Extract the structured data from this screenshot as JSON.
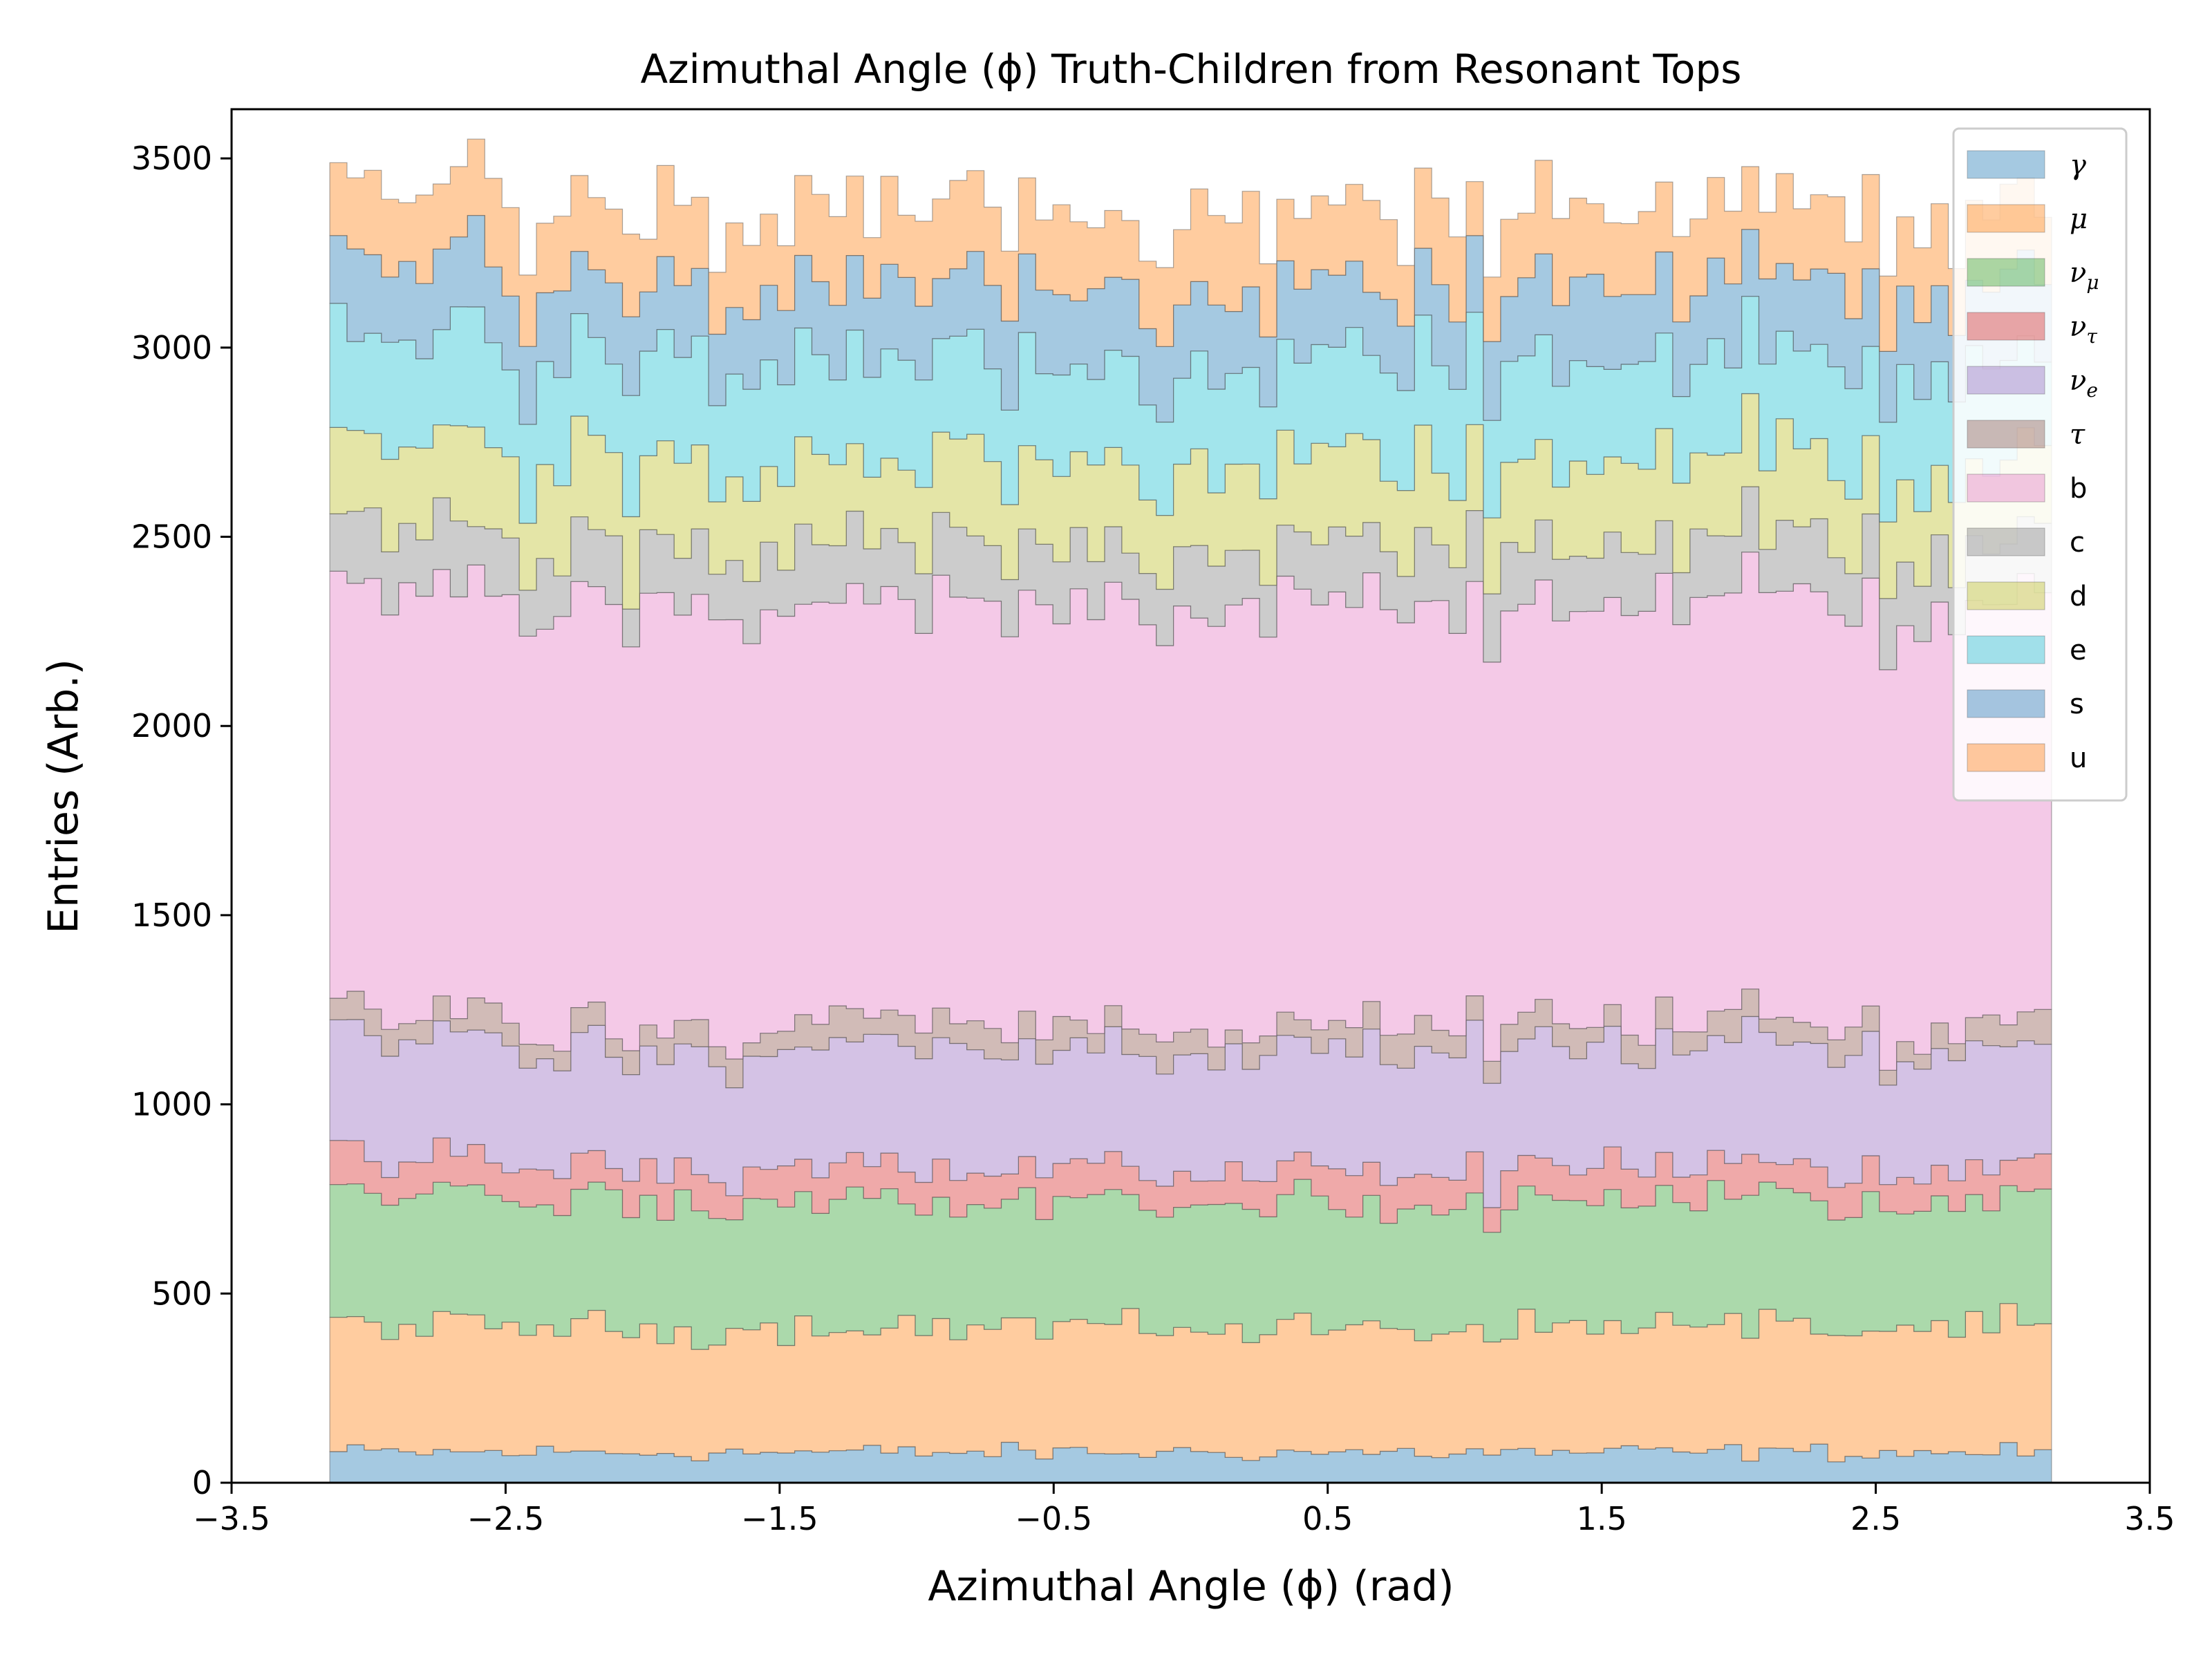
{
  "chart_data": {
    "type": "area",
    "stacked": true,
    "step": true,
    "title": "Azimuthal Angle (ϕ) Truth-Children from Resonant Tops",
    "xlabel": "Azimuthal Angle (ϕ) (rad)",
    "ylabel": "Entries (Arb.)",
    "xlim": [
      -3.5,
      3.5
    ],
    "ylim": [
      0,
      3630
    ],
    "x_ticks": [
      -3.5,
      -2.5,
      -1.5,
      -0.5,
      0.5,
      1.5,
      2.5,
      3.5
    ],
    "x_tick_labels": [
      "−3.5",
      "−2.5",
      "−1.5",
      "−0.5",
      "0.5",
      "1.5",
      "2.5",
      "3.5"
    ],
    "y_ticks": [
      0,
      500,
      1000,
      1500,
      2000,
      2500,
      3000,
      3500
    ],
    "y_tick_labels": [
      "0",
      "500",
      "1000",
      "1500",
      "2000",
      "2500",
      "3000",
      "3500"
    ],
    "grid": false,
    "legend_position": "top-right",
    "bins": {
      "min": -3.1416,
      "max": 3.1416,
      "count": 100
    },
    "series": [
      {
        "name": "γ",
        "color": "#1f77b4",
        "mean": 80,
        "noise": 12
      },
      {
        "name": "μ",
        "color": "#ff7f0e",
        "mean": 330,
        "noise": 20
      },
      {
        "name": "νμ",
        "color": "#2ca02c",
        "mean": 335,
        "noise": 20
      },
      {
        "name": "ντ",
        "color": "#d62728",
        "mean": 88,
        "noise": 14
      },
      {
        "name": "νe",
        "color": "#9467bd",
        "mean": 315,
        "noise": 20
      },
      {
        "name": "τ",
        "color": "#8c564b",
        "mean": 65,
        "noise": 14
      },
      {
        "name": "b",
        "color": "#e377c2",
        "mean": 1110,
        "noise": 30
      },
      {
        "name": "c",
        "color": "#7f7f7f",
        "mean": 155,
        "noise": 22
      },
      {
        "name": "d",
        "color": "#bcbd22",
        "mean": 215,
        "noise": 25
      },
      {
        "name": "e",
        "color": "#17becf",
        "mean": 265,
        "noise": 25
      },
      {
        "name": "s",
        "color": "#1f77b4",
        "mean": 200,
        "noise": 22
      },
      {
        "name": "u",
        "color": "#ff7f0e",
        "mean": 200,
        "noise": 24
      }
    ],
    "legend": [
      {
        "label": "γ",
        "sub": "",
        "math": true
      },
      {
        "label": "μ",
        "sub": "",
        "math": true
      },
      {
        "label": "ν",
        "sub": "μ",
        "math": true
      },
      {
        "label": "ν",
        "sub": "τ",
        "math": true
      },
      {
        "label": "ν",
        "sub": "e",
        "math": true
      },
      {
        "label": "τ",
        "sub": "",
        "math": true
      },
      {
        "label": "b",
        "sub": "",
        "math": false
      },
      {
        "label": "c",
        "sub": "",
        "math": false
      },
      {
        "label": "d",
        "sub": "",
        "math": false
      },
      {
        "label": "e",
        "sub": "",
        "math": false
      },
      {
        "label": "s",
        "sub": "",
        "math": false
      },
      {
        "label": "u",
        "sub": "",
        "math": false
      }
    ]
  }
}
